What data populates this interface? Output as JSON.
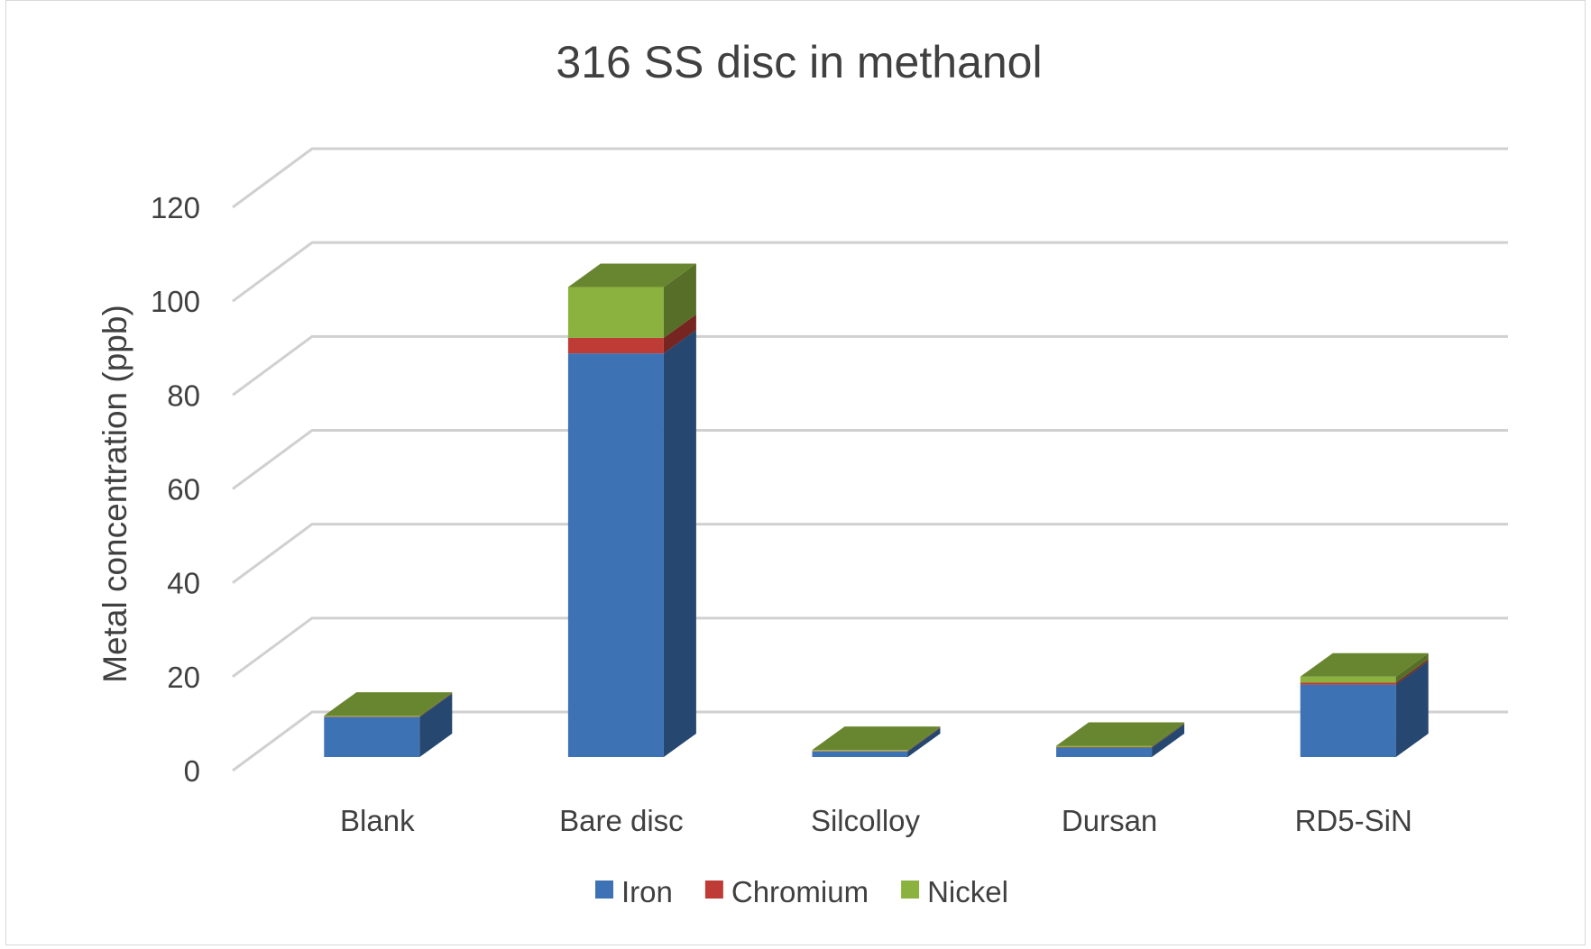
{
  "chart_data": {
    "type": "bar",
    "stacked": true,
    "style": "3d",
    "title": "316 SS disc in methanol",
    "xlabel": "",
    "ylabel": "Metal concentration (ppb)",
    "ylim": [
      0,
      120
    ],
    "yticks": [
      0,
      20,
      40,
      60,
      80,
      100,
      120
    ],
    "grid": true,
    "legend_position": "bottom",
    "categories": [
      "Blank",
      "Bare disc",
      "Silcolloy",
      "Dursan",
      "RD5-SiN"
    ],
    "series": [
      {
        "name": "Iron",
        "color": "#3d72b5",
        "values": [
          8.5,
          85.8,
          1.2,
          2.0,
          15.4
        ]
      },
      {
        "name": "Chromium",
        "color": "#be3b36",
        "values": [
          0.1,
          3.3,
          0.1,
          0.1,
          0.4
        ]
      },
      {
        "name": "Nickel",
        "color": "#8bb23f",
        "values": [
          0.2,
          10.8,
          0.2,
          0.3,
          1.3
        ]
      }
    ]
  }
}
